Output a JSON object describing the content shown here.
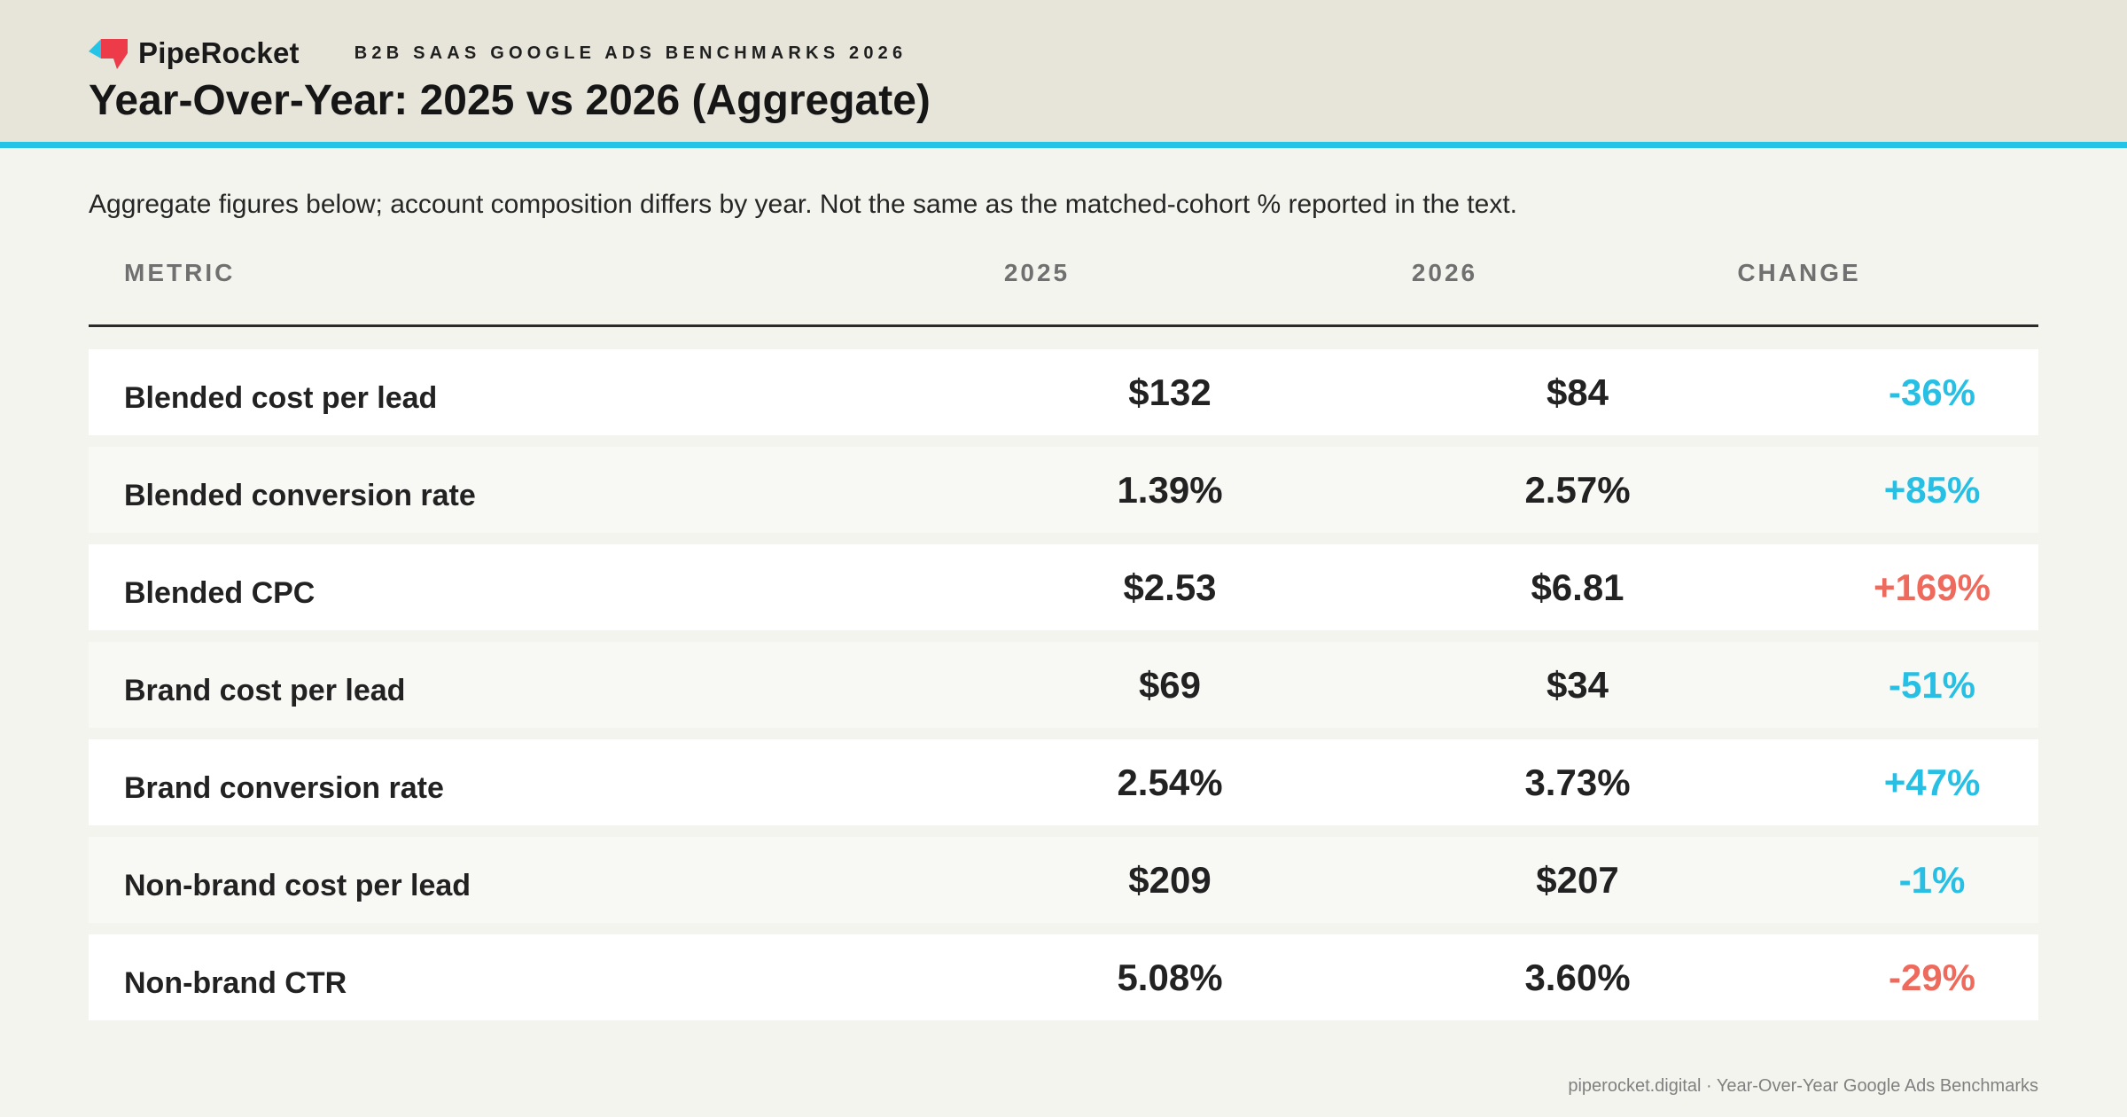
{
  "header": {
    "brand": "PipeRocket",
    "kicker": "B2B SAAS GOOGLE ADS BENCHMARKS 2026",
    "title": "Year-Over-Year: 2025 vs 2026 (Aggregate)",
    "accent_color": "#25c3e6",
    "logo_colors": [
      "#25c3e6",
      "#ee3b4a"
    ]
  },
  "note": "Aggregate figures below; account composition differs by year. Not the same as the matched-cohort % reported in the text.",
  "chart_data": {
    "type": "table",
    "columns": [
      "METRIC",
      "2025",
      "2026",
      "CHANGE"
    ],
    "rows": [
      {
        "metric": "Blended cost per lead",
        "y2025": "$132",
        "y2026": "$84",
        "change": "-36%",
        "favorable": true
      },
      {
        "metric": "Blended conversion rate",
        "y2025": "1.39%",
        "y2026": "2.57%",
        "change": "+85%",
        "favorable": true
      },
      {
        "metric": "Blended CPC",
        "y2025": "$2.53",
        "y2026": "$6.81",
        "change": "+169%",
        "favorable": false
      },
      {
        "metric": "Brand cost per lead",
        "y2025": "$69",
        "y2026": "$34",
        "change": "-51%",
        "favorable": true
      },
      {
        "metric": "Brand conversion rate",
        "y2025": "2.54%",
        "y2026": "3.73%",
        "change": "+47%",
        "favorable": true
      },
      {
        "metric": "Non-brand cost per lead",
        "y2025": "$209",
        "y2026": "$207",
        "change": "-1%",
        "favorable": true
      },
      {
        "metric": "Non-brand CTR",
        "y2025": "5.08%",
        "y2026": "3.60%",
        "change": "-29%",
        "favorable": false
      }
    ],
    "colors": {
      "favorable": "#27c0e4",
      "unfavorable": "#ee6a5d"
    }
  },
  "footer": "piperocket.digital · Year-Over-Year Google Ads Benchmarks"
}
